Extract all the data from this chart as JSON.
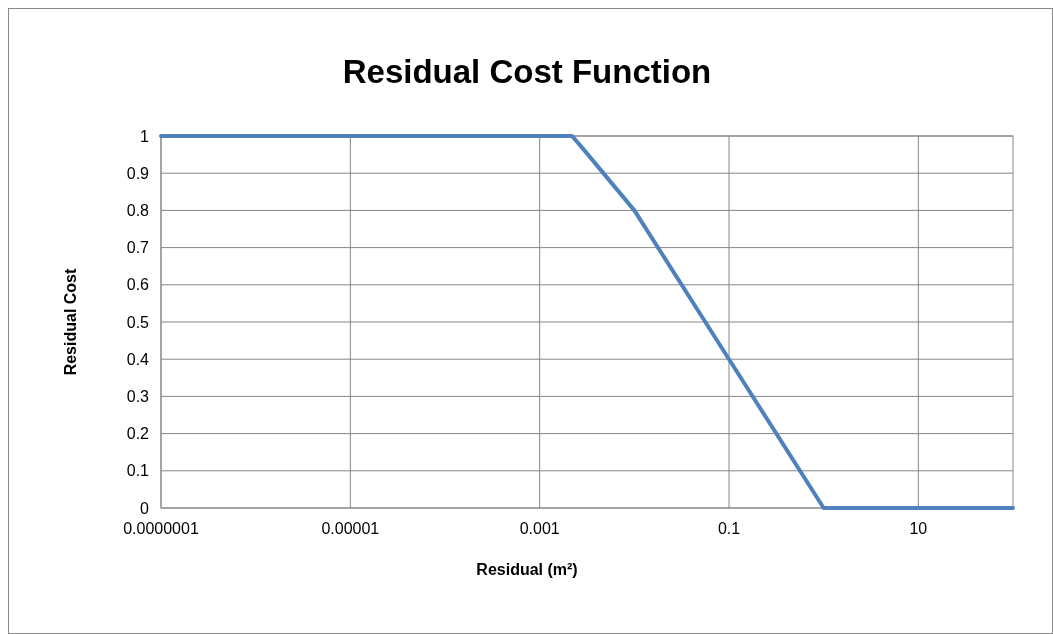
{
  "chart_data": {
    "type": "line",
    "title": "Residual Cost Function",
    "xlabel": "Residual (m²)",
    "ylabel": "Residual Cost",
    "log": "x",
    "x": [
      1e-07,
      0.001,
      0.0022,
      0.003,
      0.01,
      0.1,
      1,
      100
    ],
    "series": [
      {
        "color": "#4f81bd",
        "values": [
          1,
          1,
          1,
          0.96,
          0.8,
          0.4,
          0,
          0
        ]
      }
    ],
    "xlim": [
      1e-07,
      100
    ],
    "xticks": [
      {
        "value": 1e-07,
        "label": "0.0000001"
      },
      {
        "value": 1e-05,
        "label": "0.00001"
      },
      {
        "value": 0.001,
        "label": "0.001"
      },
      {
        "value": 0.1,
        "label": "0.1"
      },
      {
        "value": 10,
        "label": "10"
      }
    ],
    "ylim": [
      0,
      1
    ],
    "yticks": [
      0,
      0.1,
      0.2,
      0.3,
      0.4,
      0.5,
      0.6,
      0.7,
      0.8,
      0.9,
      1
    ],
    "grid": true,
    "marker": "none",
    "line_style": "solid"
  }
}
